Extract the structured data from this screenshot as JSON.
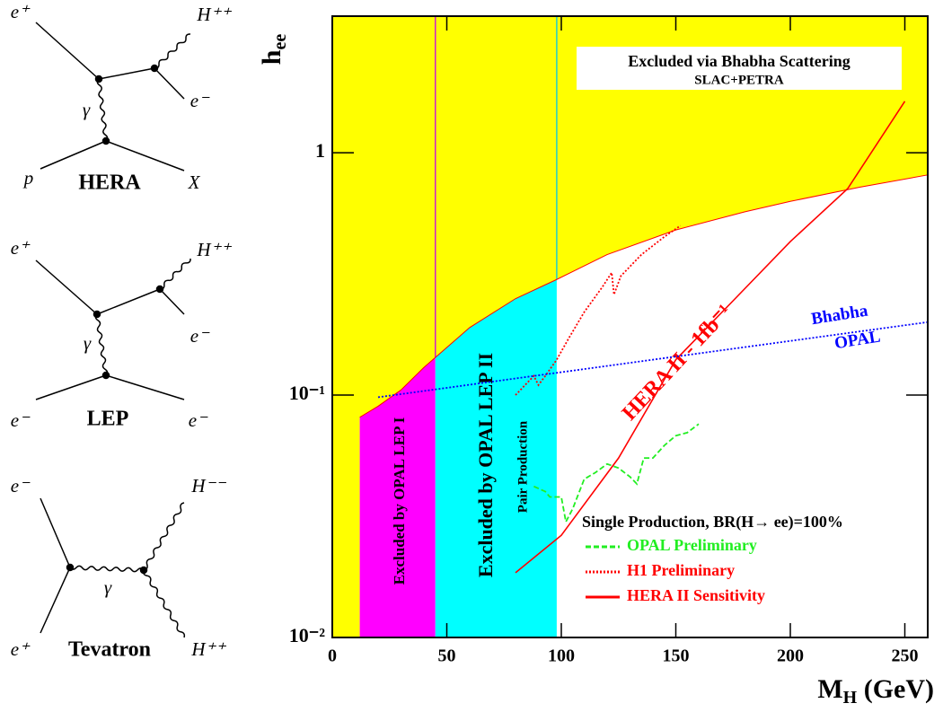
{
  "chart_data": {
    "type": "line",
    "x_label": {
      "main": "M",
      "sub": "H",
      "rest": " (GeV)"
    },
    "y_label": {
      "main": "h",
      "sub": "ee"
    },
    "xlim": [
      0,
      260
    ],
    "ylim": [
      0.01,
      3.66
    ],
    "log_y": true,
    "xticks": [
      0,
      50,
      100,
      150,
      200,
      250
    ],
    "yticks": [
      {
        "value": 0.01,
        "label": "10⁻²"
      },
      {
        "value": 0.1,
        "label": "10⁻¹"
      },
      1
    ],
    "background_color": "#ffff00",
    "boundary": {
      "x": [
        12,
        20,
        30,
        40,
        45,
        60,
        80,
        98,
        120,
        150,
        180,
        200,
        230,
        260
      ],
      "y": [
        0.081,
        0.09,
        0.105,
        0.13,
        0.143,
        0.19,
        0.25,
        0.3,
        0.38,
        0.48,
        0.57,
        0.63,
        0.72,
        0.81
      ]
    },
    "regions": [
      {
        "name": "Excluded by OPAL LEP I",
        "color": "#ff00ff",
        "xlim": [
          12,
          45
        ]
      },
      {
        "name": "Excluded by OPAL LEP II",
        "sub": "Pair Production",
        "color": "#00ffff",
        "xlim": [
          45,
          98
        ]
      }
    ],
    "box_annotation": [
      "Excluded via Bhabha Scattering",
      "SLAC+PETRA"
    ],
    "legend_title": "Single Production, BR(H→ ee)=100%",
    "series": [
      {
        "name": "OPAL Preliminary",
        "color": "#22ee22",
        "style": "dashed",
        "x": [
          88,
          93,
          95,
          100,
          102,
          105,
          110,
          115,
          120,
          125,
          130,
          133,
          136,
          140,
          145,
          150,
          155,
          160
        ],
        "values": [
          0.042,
          0.04,
          0.038,
          0.038,
          0.03,
          0.034,
          0.045,
          0.048,
          0.052,
          0.05,
          0.046,
          0.043,
          0.055,
          0.055,
          0.062,
          0.068,
          0.07,
          0.076
        ]
      },
      {
        "name": "H1 Preliminary",
        "color": "#ff0000",
        "style": "dotted",
        "x": [
          80,
          88,
          90,
          93,
          98,
          103,
          110,
          118,
          122,
          123,
          126,
          135,
          145,
          152
        ],
        "values": [
          0.1,
          0.12,
          0.11,
          0.12,
          0.14,
          0.17,
          0.22,
          0.28,
          0.32,
          0.26,
          0.31,
          0.38,
          0.45,
          0.5
        ]
      },
      {
        "name": "HERA II Sensitivity",
        "color": "#ff0000",
        "style": "solid",
        "annotation": "HERA II - 1fb⁻¹",
        "x": [
          80,
          100,
          125,
          150,
          175,
          200,
          225,
          250
        ],
        "values": [
          0.0185,
          0.0264,
          0.055,
          0.14,
          0.245,
          0.43,
          0.71,
          1.63
        ]
      },
      {
        "color": "#0000ff",
        "style": "dotted",
        "annotation_lines": [
          "Bhabha",
          "OPAL"
        ],
        "x": [
          20,
          260
        ],
        "values": [
          0.098,
          0.2
        ]
      }
    ]
  },
  "diagrams": [
    {
      "labels": [
        "e⁺",
        "H⁺⁺",
        "γ",
        "e⁻",
        "p",
        "HERA",
        "X"
      ]
    },
    {
      "labels": [
        "e⁺",
        "H⁺⁺",
        "γ",
        "e⁻",
        "e⁻",
        "LEP",
        "e⁻"
      ]
    },
    {
      "labels": [
        "e⁻",
        "H⁻⁻",
        "γ",
        "e⁺",
        "Tevatron",
        "H⁺⁺"
      ]
    }
  ]
}
